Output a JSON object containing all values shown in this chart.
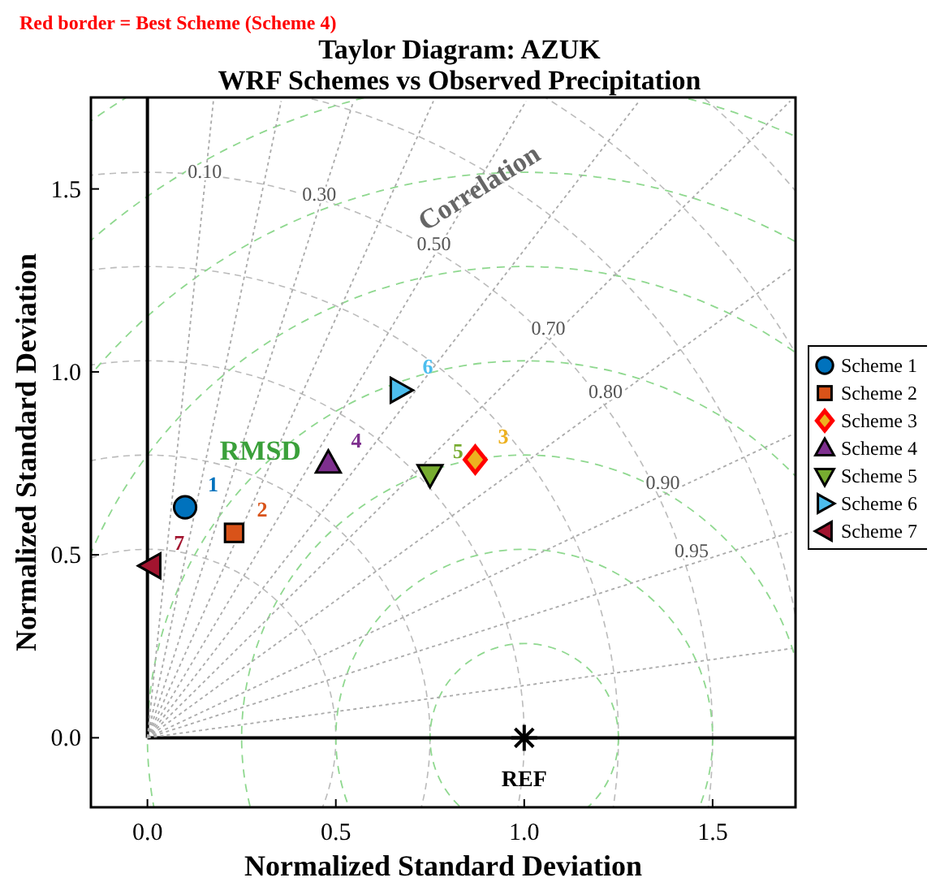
{
  "chart_data": {
    "type": "scatter",
    "title": "Taylor Diagram: AZUK",
    "subtitle": "WRF Schemes vs Observed Precipitation",
    "xlabel": "Normalized Standard Deviation",
    "ylabel": "Normalized Standard Deviation",
    "xlim": [
      -0.15,
      1.72
    ],
    "ylim": [
      -0.19,
      1.75
    ],
    "xticks": [
      {
        "value": 0,
        "label": "0.0"
      },
      {
        "value": 0.5,
        "label": "0.5"
      },
      {
        "value": 1,
        "label": "1.0"
      },
      {
        "value": 1.5,
        "label": "1.5"
      }
    ],
    "yticks": [
      {
        "value": 0,
        "label": "0.0"
      },
      {
        "value": 0.5,
        "label": "0.5"
      },
      {
        "value": 1,
        "label": "1.0"
      },
      {
        "value": 1.5,
        "label": "1.5"
      }
    ],
    "legend": "right",
    "series": [
      {
        "type": "line",
        "color": "#000000",
        "line_style": "solid",
        "x": [
          0,
          0
        ],
        "values": [
          0,
          1.75
        ]
      },
      {
        "type": "line",
        "color": "#000000",
        "line_style": "solid",
        "x": [
          0,
          1.72
        ],
        "values": [
          0,
          0
        ]
      },
      {
        "name": "Scheme 1",
        "color": "#0072bd",
        "marker": "circle",
        "x": [
          0.1
        ],
        "values": [
          0.63
        ]
      },
      {
        "name": "Scheme 2",
        "color": "#d95319",
        "marker": "square",
        "x": [
          0.23
        ],
        "values": [
          0.56
        ]
      },
      {
        "name": "Scheme 3",
        "color": "#edb120",
        "marker": "diamond",
        "x": [
          0.87
        ],
        "values": [
          0.76
        ]
      },
      {
        "name": "Scheme 4",
        "color": "#7e2f8e",
        "marker": "triangle",
        "x": [
          0.48
        ],
        "values": [
          0.75
        ]
      },
      {
        "name": "Scheme 5",
        "color": "#77ac30",
        "marker": "triangle-down",
        "x": [
          0.75
        ],
        "values": [
          0.72
        ]
      },
      {
        "name": "Scheme 6",
        "color": "#4dbeee",
        "marker": "triangle-right",
        "x": [
          0.67
        ],
        "values": [
          0.95
        ]
      },
      {
        "name": "Scheme 7",
        "color": "#a2142f",
        "marker": "triangle-left",
        "x": [
          0.01
        ],
        "values": [
          0.47
        ]
      },
      {
        "color": "#000000",
        "marker": "cross",
        "x": [
          1.0
        ],
        "values": [
          0.0
        ]
      },
      {
        "type": "line",
        "name": "0.10",
        "color": "#aaaaaa",
        "line_style": "dotted",
        "x": [
          0,
          0.152,
          0.175
        ],
        "values": [
          0,
          1.512,
          1.74
        ]
      },
      {
        "type": "line",
        "color": "#aaaaaa",
        "line_style": "dotted",
        "x": [
          0,
          0.355
        ],
        "values": [
          0,
          1.74
        ]
      },
      {
        "type": "line",
        "name": "0.30",
        "color": "#aaaaaa",
        "line_style": "dotted",
        "x": [
          0,
          0.456,
          0.547
        ],
        "values": [
          0,
          1.45,
          1.74
        ]
      },
      {
        "type": "line",
        "color": "#aaaaaa",
        "line_style": "dotted",
        "x": [
          0,
          0.759
        ],
        "values": [
          0,
          1.74
        ]
      },
      {
        "type": "line",
        "name": "0.50",
        "color": "#aaaaaa",
        "line_style": "dotted",
        "x": [
          0,
          0.76,
          1.005
        ],
        "values": [
          0,
          1.316,
          1.74
        ]
      },
      {
        "type": "line",
        "color": "#aaaaaa",
        "line_style": "dotted",
        "x": [
          0,
          1.305
        ],
        "values": [
          0,
          1.74
        ]
      },
      {
        "type": "line",
        "name": "0.70",
        "color": "#aaaaaa",
        "line_style": "dotted",
        "x": [
          0,
          1.064,
          1.706
        ],
        "values": [
          0,
          1.085,
          1.74
        ]
      },
      {
        "type": "line",
        "name": "0.80",
        "color": "#aaaaaa",
        "line_style": "dotted",
        "x": [
          0,
          1.216,
          1.71
        ],
        "values": [
          0,
          0.912,
          1.283
        ]
      },
      {
        "type": "line",
        "name": "0.90",
        "color": "#aaaaaa",
        "line_style": "dotted",
        "x": [
          0,
          1.368,
          1.71
        ],
        "values": [
          0,
          0.663,
          0.828
        ]
      },
      {
        "type": "line",
        "name": "0.95",
        "color": "#aaaaaa",
        "line_style": "dotted",
        "x": [
          0,
          1.444,
          1.71
        ],
        "values": [
          0,
          0.475,
          0.562
        ]
      },
      {
        "type": "line",
        "color": "#aaaaaa",
        "line_style": "dotted",
        "x": [
          0,
          1.71
        ],
        "values": [
          0,
          0.244
        ]
      }
    ],
    "annotations": [
      "Red border = Best Scheme (Scheme 4)",
      "Correlation",
      "RMSD",
      {
        "text": "1",
        "x": 0.1,
        "y": 0.63
      },
      {
        "text": "2",
        "x": 0.23,
        "y": 0.56
      },
      {
        "text": "3",
        "x": 0.87,
        "y": 0.76
      },
      {
        "text": "4",
        "x": 0.48,
        "y": 0.75
      },
      {
        "text": "5",
        "x": 0.75,
        "y": 0.72
      },
      {
        "text": "6",
        "x": 0.67,
        "y": 0.95
      },
      {
        "text": "7",
        "x": 0.01,
        "y": 0.47
      },
      {
        "text": "REF",
        "x": 1.0,
        "y": 0.0
      }
    ]
  }
}
